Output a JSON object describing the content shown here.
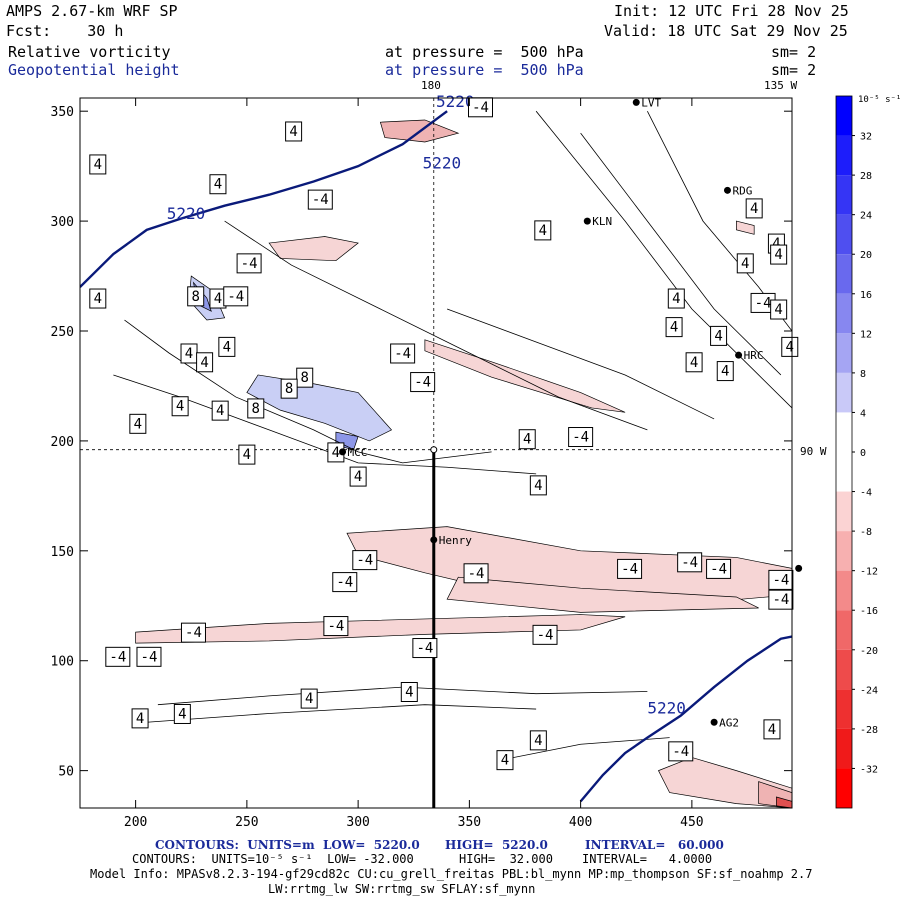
{
  "header": {
    "model": "AMPS 2.67-km WRF SP",
    "init": "Init: 12 UTC Fri 28 Nov 25",
    "fcst": "Fcst:    30 h",
    "valid": "Valid: 18 UTC Sat 29 Nov 25",
    "field1": "Relative vorticity",
    "field1_level": "at pressure =  500 hPa",
    "field1_sm": "sm= 2",
    "field2": "Geopotential height",
    "field2_level": "at pressure =  500 hPa",
    "field2_sm": "sm= 2"
  },
  "map_labels": {
    "meridian_180": "180",
    "meridian_135": "135 W",
    "meridian_90": "90 W"
  },
  "stations": [
    {
      "name": "LVT",
      "x": 425,
      "y": 354
    },
    {
      "name": "RDG",
      "x": 466,
      "y": 314
    },
    {
      "name": "KLN",
      "x": 403,
      "y": 300
    },
    {
      "name": "HRC",
      "x": 471,
      "y": 239
    },
    {
      "name": "MCC",
      "x": 293,
      "y": 195
    },
    {
      "name": "Henry",
      "x": 334,
      "y": 155
    },
    {
      "name": "AG2",
      "x": 460,
      "y": 72
    },
    {
      "name": "",
      "x": 498,
      "y": 142
    }
  ],
  "chart_data": {
    "type": "contour",
    "xlim": [
      175,
      495
    ],
    "ylim": [
      33,
      356
    ],
    "xticks": [
      200,
      250,
      300,
      350,
      400,
      450
    ],
    "yticks": [
      50,
      100,
      150,
      200,
      250,
      300,
      350
    ],
    "geopotential_height_contours": [
      {
        "value": "5220",
        "points": [
          [
            175,
            270
          ],
          [
            190,
            285
          ],
          [
            205,
            296
          ],
          [
            220,
            301
          ],
          [
            240,
            307
          ],
          [
            260,
            312
          ],
          [
            280,
            318
          ],
          [
            300,
            325
          ],
          [
            320,
            335
          ],
          [
            340,
            350
          ]
        ]
      },
      {
        "value": "5220",
        "points": [
          [
            400,
            36
          ],
          [
            410,
            48
          ],
          [
            420,
            58
          ],
          [
            430,
            65
          ],
          [
            445,
            75
          ],
          [
            460,
            88
          ],
          [
            475,
            100
          ],
          [
            490,
            110
          ],
          [
            495,
            111
          ]
        ]
      }
    ],
    "geopotential_labels": [
      {
        "text": "5220",
        "x": 214,
        "y": 301
      },
      {
        "text": "5220",
        "x": 329,
        "y": 324
      },
      {
        "text": "5220",
        "x": 335,
        "y": 352
      },
      {
        "text": "5220",
        "x": 430,
        "y": 76
      }
    ],
    "vorticity_box_labels": [
      {
        "text": "4",
        "x": 183,
        "y": 326
      },
      {
        "text": "-4",
        "x": 355,
        "y": 352
      },
      {
        "text": "4",
        "x": 271,
        "y": 341
      },
      {
        "text": "4",
        "x": 237,
        "y": 317
      },
      {
        "text": "-4",
        "x": 283,
        "y": 310
      },
      {
        "text": "4",
        "x": 383,
        "y": 296
      },
      {
        "text": "-4",
        "x": 251,
        "y": 281
      },
      {
        "text": "4",
        "x": 183,
        "y": 265
      },
      {
        "text": "8",
        "x": 227,
        "y": 266
      },
      {
        "text": "4",
        "x": 237,
        "y": 265
      },
      {
        "text": "-4",
        "x": 245,
        "y": 266
      },
      {
        "text": "4",
        "x": 241,
        "y": 243
      },
      {
        "text": "-4",
        "x": 320,
        "y": 240
      },
      {
        "text": "4",
        "x": 224,
        "y": 240
      },
      {
        "text": "4",
        "x": 231,
        "y": 236
      },
      {
        "text": "8",
        "x": 276,
        "y": 229
      },
      {
        "text": "-4",
        "x": 329,
        "y": 227
      },
      {
        "text": "8",
        "x": 269,
        "y": 224
      },
      {
        "text": "4",
        "x": 220,
        "y": 216
      },
      {
        "text": "4",
        "x": 238,
        "y": 214
      },
      {
        "text": "8",
        "x": 254,
        "y": 215
      },
      {
        "text": "4",
        "x": 201,
        "y": 208
      },
      {
        "text": "4",
        "x": 376,
        "y": 201
      },
      {
        "text": "-4",
        "x": 400,
        "y": 202
      },
      {
        "text": "4",
        "x": 250,
        "y": 194
      },
      {
        "text": "4",
        "x": 290,
        "y": 195
      },
      {
        "text": "4",
        "x": 300,
        "y": 184
      },
      {
        "text": "4",
        "x": 381,
        "y": 180
      },
      {
        "text": "-4",
        "x": 303,
        "y": 146
      },
      {
        "text": "-4",
        "x": 353,
        "y": 140
      },
      {
        "text": "-4",
        "x": 294,
        "y": 136
      },
      {
        "text": "-4",
        "x": 449,
        "y": 145
      },
      {
        "text": "-4",
        "x": 422,
        "y": 142
      },
      {
        "text": "-4",
        "x": 462,
        "y": 142
      },
      {
        "text": "-4",
        "x": 490,
        "y": 137
      },
      {
        "text": "-4",
        "x": 490,
        "y": 128
      },
      {
        "text": "-4",
        "x": 290,
        "y": 116
      },
      {
        "text": "-4",
        "x": 226,
        "y": 113
      },
      {
        "text": "-4",
        "x": 384,
        "y": 112
      },
      {
        "text": "-4",
        "x": 330,
        "y": 106
      },
      {
        "text": "-4",
        "x": 192,
        "y": 102
      },
      {
        "text": "-4",
        "x": 206,
        "y": 102
      },
      {
        "text": "4",
        "x": 323,
        "y": 86
      },
      {
        "text": "4",
        "x": 278,
        "y": 83
      },
      {
        "text": "4",
        "x": 221,
        "y": 76
      },
      {
        "text": "4",
        "x": 202,
        "y": 74
      },
      {
        "text": "4",
        "x": 381,
        "y": 64
      },
      {
        "text": "4",
        "x": 366,
        "y": 55
      },
      {
        "text": "-4",
        "x": 445,
        "y": 59
      },
      {
        "text": "4",
        "x": 486,
        "y": 69
      },
      {
        "text": "4",
        "x": 478,
        "y": 306
      },
      {
        "text": "4",
        "x": 488,
        "y": 290
      },
      {
        "text": "4",
        "x": 489,
        "y": 285
      },
      {
        "text": "4",
        "x": 474,
        "y": 281
      },
      {
        "text": "4",
        "x": 443,
        "y": 265
      },
      {
        "text": "-4",
        "x": 482,
        "y": 263
      },
      {
        "text": "4",
        "x": 489,
        "y": 260
      },
      {
        "text": "4",
        "x": 442,
        "y": 252
      },
      {
        "text": "4",
        "x": 462,
        "y": 248
      },
      {
        "text": "4",
        "x": 494,
        "y": 243
      },
      {
        "text": "4",
        "x": 451,
        "y": 236
      },
      {
        "text": "4",
        "x": 465,
        "y": 232
      }
    ],
    "colorbar": {
      "unit_label": "10⁻⁵ s⁻¹",
      "ticks": [
        "32",
        "28",
        "24",
        "20",
        "16",
        "12",
        "8",
        "4",
        "0",
        "-4",
        "-8",
        "-12",
        "-16",
        "-20",
        "-24",
        "-28",
        "-32"
      ]
    }
  },
  "footer": {
    "contours1_a": "CONTOURS:  UNITS=m  LOW=  5220.0",
    "contours1_b": "HIGH=  5220.0",
    "contours1_c": "INTERVAL=   60.000",
    "contours2_a": "CONTOURS:  UNITS=10⁻⁵ s⁻¹  LOW= -32.000",
    "contours2_b": "HIGH=  32.000",
    "contours2_c": "INTERVAL=   4.0000",
    "model_info": "Model Info: MPASv8.2.3-194-gf29cd82c CU:cu_grell_freitas PBL:bl_mynn MP:mp_thompson SF:sf_noahmp 2.7",
    "model_info2": "LW:rrtmg_lw SW:rrtmg_sw SFLAY:sf_mynn"
  },
  "colors": {
    "height_contour": "#0a1a7a",
    "label_blue": "#1a2a9a"
  }
}
